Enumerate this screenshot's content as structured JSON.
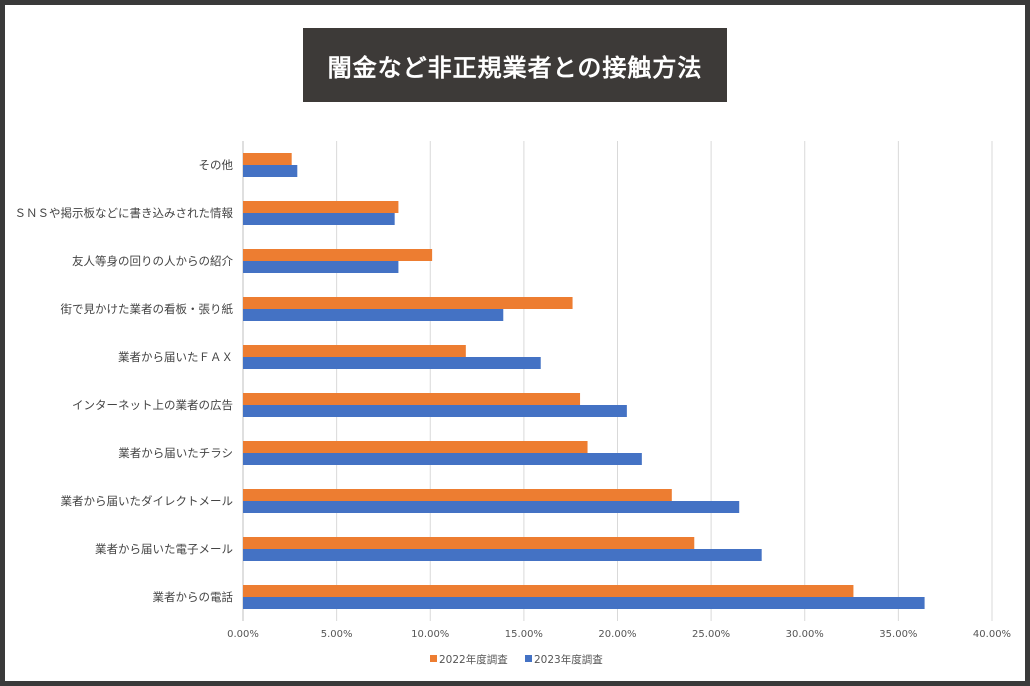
{
  "chart_data": {
    "type": "bar",
    "orientation": "horizontal",
    "title": "闇金など非正規業者との接触方法",
    "categories": [
      "その他",
      "ＳＮＳや掲示板などに書き込みされた情報",
      "友人等身の回りの人からの紹介",
      "街で見かけた業者の看板・張り紙",
      "業者から届いたＦＡＸ",
      "インターネット上の業者の広告",
      "業者から届いたチラシ",
      "業者から届いたダイレクトメール",
      "業者から届いた電子メール",
      "業者からの電話"
    ],
    "series": [
      {
        "name": "2022年度調査",
        "color": "#ED7D31",
        "values": [
          2.6,
          8.3,
          10.1,
          17.6,
          11.9,
          18.0,
          18.4,
          22.9,
          24.1,
          32.6
        ]
      },
      {
        "name": "2023年度調査",
        "color": "#4472C4",
        "values": [
          2.9,
          8.1,
          8.3,
          13.9,
          15.9,
          20.5,
          21.3,
          26.5,
          27.7,
          36.4
        ]
      }
    ],
    "xlim": [
      0,
      40
    ],
    "ticks": [
      "0.00%",
      "5.00%",
      "10.00%",
      "15.00%",
      "20.00%",
      "25.00%",
      "30.00%",
      "35.00%",
      "40.00%"
    ],
    "unit": "%",
    "grid": true,
    "legend": "bottom"
  }
}
